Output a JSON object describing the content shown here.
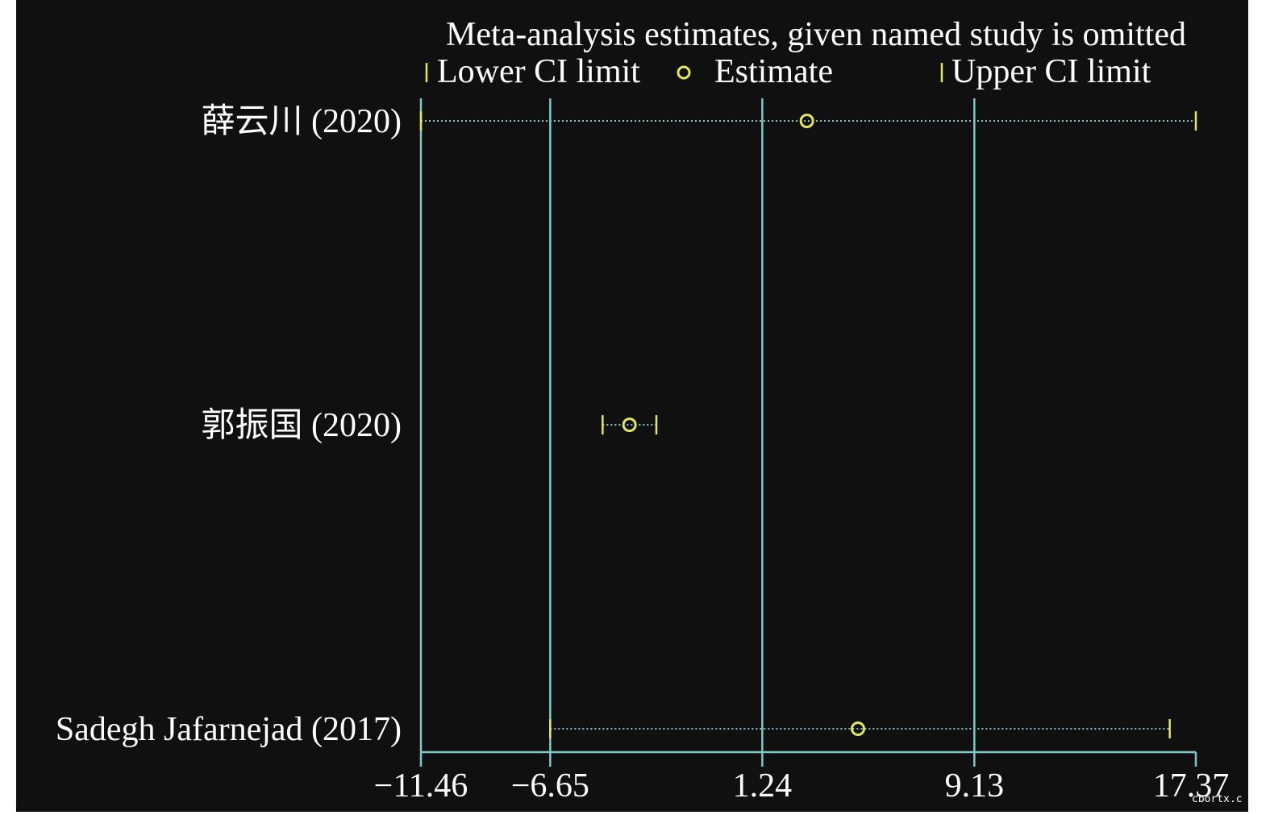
{
  "chart_data": {
    "type": "scatter",
    "title": "Meta-analysis estimates, given named study is omitted",
    "legend": {
      "placement": "top",
      "entries": [
        "Lower CI limit",
        "Estimate",
        "Upper CI limit"
      ]
    },
    "x_ticks": [
      -11.46,
      -6.65,
      1.24,
      9.13,
      17.37
    ],
    "x_tick_labels": [
      "−11.46",
      "−6.65",
      "1.24",
      "9.13",
      "17.37"
    ],
    "xlim": [
      -11.46,
      17.37
    ],
    "vertical_reference_lines": [
      -11.46,
      -6.65,
      1.24,
      9.13
    ],
    "studies": [
      {
        "label": "薛云川 (2020)",
        "lower": -11.46,
        "estimate": 2.9,
        "upper": 17.37
      },
      {
        "label": "郭振国 (2020)",
        "lower": -4.7,
        "estimate": -3.7,
        "upper": -2.7
      },
      {
        "label": "Sadegh Jafarnejad (2017)",
        "lower": -6.65,
        "estimate": 4.8,
        "upper": 16.4
      }
    ],
    "colors": {
      "background": "#101010",
      "axis": "#7ec8c8",
      "marker": "#e6e65a",
      "text": "#ffffff"
    }
  },
  "watermark": "cbortx.c"
}
